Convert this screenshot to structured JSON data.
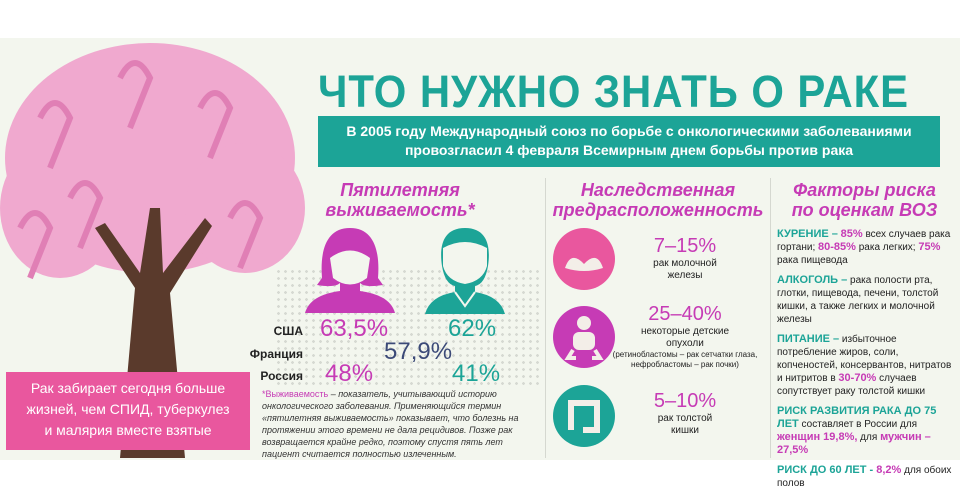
{
  "colors": {
    "teal": "#1ca497",
    "magenta": "#c63bb5",
    "pink": "#e9579e",
    "navy": "#3c4a78",
    "background": "#f3f6ee"
  },
  "title": "ЧТО НУЖНО ЗНАТЬ О РАКЕ",
  "banner": {
    "line1": "В 2005 году Международный союз по борьбе с онкологическими заболеваниями",
    "line2": "провозгласил 4 февраля Всемирным днем борьбы против рака"
  },
  "tree": {
    "icon": "pink-ribbon-tree"
  },
  "pinkbox": {
    "line1": "Рак забирает сегодня больше",
    "line2": "жизней, чем СПИД, туберкулез",
    "line3": "и малярия вместе взятые"
  },
  "survival": {
    "title1": "Пятилетняя",
    "title2": "выживаемость*",
    "icons": [
      "woman-icon",
      "man-icon"
    ],
    "rows": [
      {
        "country": "США",
        "women": "63,5%",
        "men": "62%"
      },
      {
        "country": "Франция",
        "both": "57,9%"
      },
      {
        "country": "Россия",
        "women": "48%",
        "men": "41%"
      }
    ],
    "note_term": "*Выживаемость",
    "note_text": " – показатель, учитывающий историю онкологического заболевания. Применяющийся термин «пятилетняя выживаемость» показывает, что болезнь на протяжении этого времени не дала рецидивов. Позже рак возвращается крайне редко, поэтому спустя пять лет пациент считается полностью излеченным."
  },
  "heredity": {
    "title1": "Наследственная",
    "title2": "предрасположенность",
    "items": [
      {
        "icon": "bra-icon",
        "pct": "7–15%",
        "text1": "рак молочной",
        "text2": "железы"
      },
      {
        "icon": "baby-icon",
        "pct": "25–40%",
        "text1": "некоторые детские",
        "text2": "опухоли",
        "text3": "(ретинобластомы – рак сетчатки глаза,",
        "text4": "нефробластомы –  рак почки)"
      },
      {
        "icon": "intestine-icon",
        "pct": "5–10%",
        "text1": "рак толстой",
        "text2": "кишки"
      }
    ]
  },
  "risk": {
    "title1": "Факторы риска",
    "title2": "по оценкам ВОЗ",
    "smoking": {
      "head": "КУРЕНИЕ –",
      "p1": "85%",
      "t1": " всех случаев рака гортани; ",
      "p2": "80-85%",
      "t2": " рака легких; ",
      "p3": "75%",
      "t3": " рака пищевода"
    },
    "alcohol": {
      "head": "АЛКОГОЛЬ –",
      "t1": " рака полости рта, глотки, пищевода, печени, толстой кишки, а также легких и молочной железы"
    },
    "nutrition": {
      "head": "ПИТАНИЕ –",
      "t1": " избыточное потребление жиров, соли, копченостей, консервантов, нитратов и нитритов в ",
      "p1": "30-70%",
      "t2": " случаев сопутствует раку толстой кишки"
    },
    "risk75": {
      "head": "РИСК РАЗВИТИЯ РАКА ДО 75 ЛЕТ",
      "t1": " составляет в России для ",
      "p1": "женщин 19,8%,",
      "t2": " для ",
      "p2": "мужчин – 27,5%"
    },
    "risk60": {
      "head": "РИСК ДО 60 ЛЕТ -",
      "p1": " 8,2%",
      "t1": " для обоих полов"
    }
  }
}
